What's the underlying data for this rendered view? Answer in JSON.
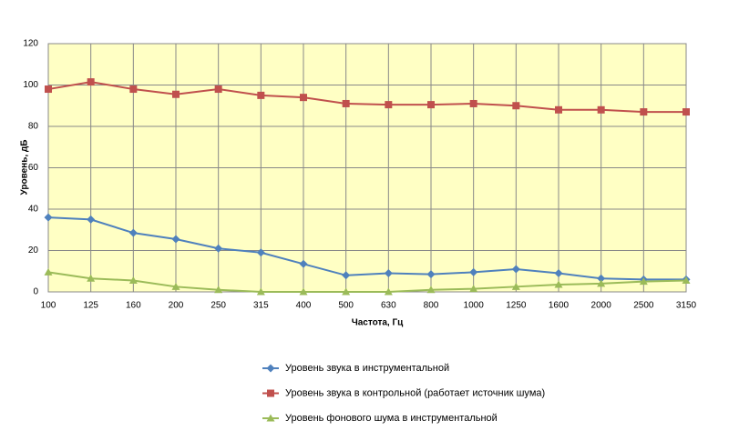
{
  "chart_data": {
    "type": "line",
    "x_label": "Частота, Гц",
    "y_label": "Уровень, дБ",
    "categories": [
      "100",
      "125",
      "160",
      "200",
      "250",
      "315",
      "400",
      "500",
      "630",
      "800",
      "1000",
      "1250",
      "1600",
      "2000",
      "2500",
      "3150"
    ],
    "series": [
      {
        "name": "Уровень звука в инструментальной",
        "color": "#4f81bd",
        "marker": "diamond",
        "values": [
          36,
          35,
          28.5,
          25.5,
          21,
          19,
          13.5,
          8,
          9,
          8.5,
          9.5,
          11,
          9,
          6.5,
          6,
          6
        ]
      },
      {
        "name": "Уровень звука в контрольной (работает источник шума)",
        "color": "#c0504d",
        "marker": "square",
        "values": [
          98,
          101.5,
          98,
          95.5,
          98,
          95,
          94,
          91,
          90.5,
          90.5,
          91,
          90,
          88,
          88,
          87,
          87
        ]
      },
      {
        "name": "Уровень фонового шума в инструментальной",
        "color": "#9bbb59",
        "marker": "triangle",
        "values": [
          9.5,
          6.5,
          5.5,
          2.5,
          1,
          0,
          0,
          0,
          0,
          1,
          1.5,
          2.5,
          3.5,
          4,
          5,
          5.5
        ]
      }
    ],
    "ylim": [
      0,
      120
    ],
    "yticks": [
      0,
      20,
      40,
      60,
      80,
      100,
      120
    ],
    "grid": true,
    "plot_background": "#ffffc4",
    "legend": "bottom"
  }
}
